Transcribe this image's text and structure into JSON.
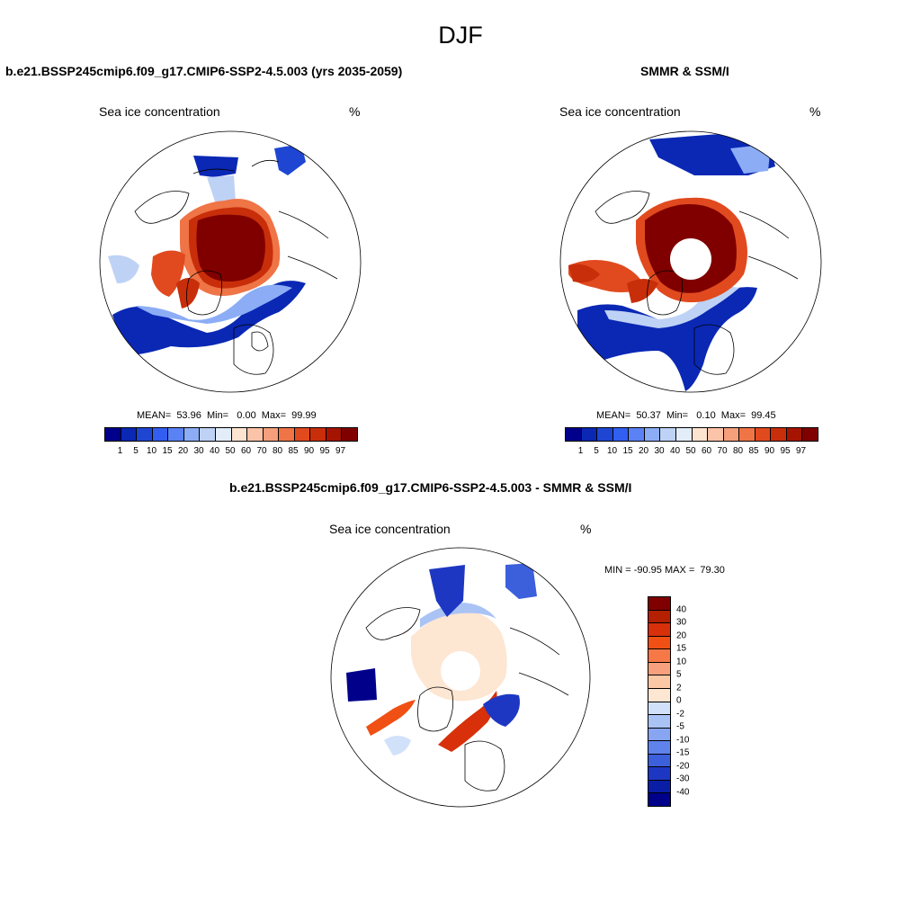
{
  "figure": {
    "title": "DJF",
    "panels": {
      "model": {
        "title": "b.e21.BSSP245cmip6.f09_g17.CMIP6-SSP2-4.5.003 (yrs 2035-2059)",
        "variable": "Sea ice concentration",
        "units": "%",
        "stats": "MEAN=  53.96  Min=   0.00  Max=  99.99"
      },
      "obs": {
        "title": "SMMR & SSM/I",
        "variable": "Sea ice concentration",
        "units": "%",
        "stats": "MEAN=  50.37  Min=   0.10  Max=  99.45"
      },
      "diff": {
        "title": "b.e21.BSSP245cmip6.f09_g17.CMIP6-SSP2-4.5.003 - SMMR & SSM/I",
        "variable": "Sea ice concentration",
        "units": "%",
        "stats": "MIN = -90.95 MAX =  79.30"
      }
    },
    "colorbars": {
      "abs": {
        "levels": [
          "1",
          "5",
          "10",
          "15",
          "20",
          "30",
          "40",
          "50",
          "60",
          "70",
          "80",
          "85",
          "90",
          "95",
          "97"
        ],
        "colors": [
          "#00008b",
          "#0a28b4",
          "#1e46d2",
          "#325ff0",
          "#5a82f5",
          "#8cadf5",
          "#bed2f5",
          "#e3edfa",
          "#fde4d0",
          "#fbc3a8",
          "#f59f7c",
          "#ef7446",
          "#e14a1e",
          "#c82e0a",
          "#a51400",
          "#800000"
        ]
      },
      "diff": {
        "levels": [
          "40",
          "30",
          "20",
          "15",
          "10",
          "5",
          "2",
          "0",
          "-2",
          "-5",
          "-10",
          "-15",
          "-20",
          "-30",
          "-40"
        ],
        "colors": [
          "#800000",
          "#b42000",
          "#d7300a",
          "#f05014",
          "#f57846",
          "#f8a07d",
          "#fbc8a5",
          "#fde6d2",
          "#d2e1fa",
          "#aac3f5",
          "#87a5f0",
          "#5f82eb",
          "#3c5fdc",
          "#1e37c3",
          "#0a1ea5",
          "#00008b"
        ]
      }
    }
  },
  "chart_data": [
    {
      "type": "map",
      "projection": "north-polar-stereographic",
      "title": "b.e21.BSSP245cmip6.f09_g17.CMIP6-SSP2-4.5.003 (yrs 2035-2059)",
      "variable": "Sea ice concentration",
      "units": "%",
      "mean": 53.96,
      "min": 0.0,
      "max": 99.99,
      "levels": [
        1,
        5,
        10,
        15,
        20,
        30,
        40,
        50,
        60,
        70,
        80,
        85,
        90,
        95,
        97
      ]
    },
    {
      "type": "map",
      "projection": "north-polar-stereographic",
      "title": "SMMR & SSM/I",
      "variable": "Sea ice concentration",
      "units": "%",
      "mean": 50.37,
      "min": 0.1,
      "max": 99.45,
      "levels": [
        1,
        5,
        10,
        15,
        20,
        30,
        40,
        50,
        60,
        70,
        80,
        85,
        90,
        95,
        97
      ],
      "pole_hole": true
    },
    {
      "type": "map",
      "projection": "north-polar-stereographic",
      "title": "b.e21.BSSP245cmip6.f09_g17.CMIP6-SSP2-4.5.003 - SMMR & SSM/I",
      "variable": "Sea ice concentration",
      "units": "%",
      "min": -90.95,
      "max": 79.3,
      "levels": [
        40,
        30,
        20,
        15,
        10,
        5,
        2,
        0,
        -2,
        -5,
        -10,
        -15,
        -20,
        -30,
        -40
      ],
      "pole_hole": true
    }
  ]
}
